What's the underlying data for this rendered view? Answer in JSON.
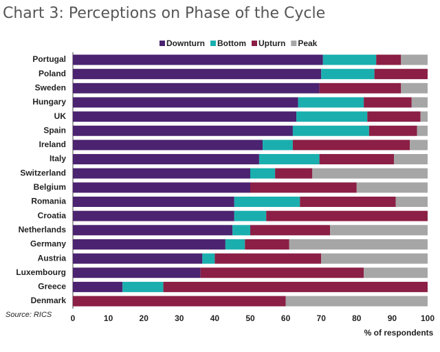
{
  "chart_data": {
    "type": "stacked-bar-horizontal",
    "title": "Chart 3: Perceptions on Phase of the Cycle",
    "source": "Source: RICS",
    "x_label": "% of respondents",
    "categories": [
      "Portugal",
      "Poland",
      "Sweden",
      "Hungary",
      "UK",
      "Spain",
      "Ireland",
      "Italy",
      "Switzerland",
      "Belgium",
      "Romania",
      "Croatia",
      "Netherlands",
      "Germany",
      "Austria",
      "Luxembourg",
      "Greece",
      "Denmark"
    ],
    "series": [
      {
        "name": "Downturn",
        "color": "#4b2370",
        "values": [
          70.5,
          70,
          69.5,
          63.5,
          63,
          62,
          53.5,
          52.5,
          50,
          50,
          45.5,
          45.5,
          45,
          43,
          36.5,
          36,
          14,
          0
        ]
      },
      {
        "name": "Bottom",
        "color": "#1aafae",
        "values": [
          15,
          15,
          0,
          18.5,
          20,
          21.5,
          8.5,
          17,
          7,
          0,
          18.5,
          9,
          5,
          5.5,
          3.5,
          0,
          11.5,
          0
        ]
      },
      {
        "name": "Upturn",
        "color": "#8b1f45",
        "values": [
          7,
          15,
          23,
          13.5,
          15,
          13.5,
          33,
          21,
          10.5,
          30,
          27,
          45.5,
          22.5,
          12.5,
          30,
          46,
          74.5,
          60
        ]
      },
      {
        "name": "Peak",
        "color": "#a6a6a6",
        "values": [
          7.5,
          0,
          7.5,
          4.5,
          2,
          3,
          5,
          9.5,
          32.5,
          20,
          9,
          0,
          27.5,
          39,
          30,
          18,
          0,
          40
        ]
      }
    ],
    "xlim": [
      0,
      100
    ],
    "xticks": [
      0,
      10,
      20,
      30,
      40,
      50,
      60,
      70,
      80,
      90,
      100
    ]
  }
}
